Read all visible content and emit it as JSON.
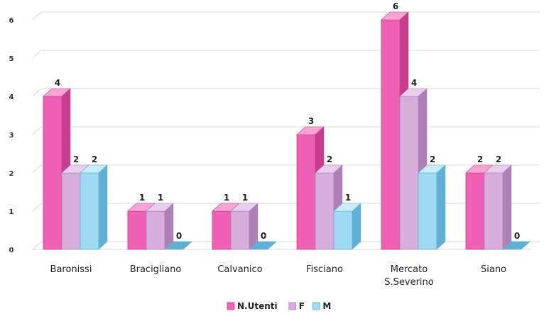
{
  "chart_data": {
    "type": "bar",
    "categories": [
      [
        "Baronissi"
      ],
      [
        "Bracigliano"
      ],
      [
        "Calvanico"
      ],
      [
        "Fisciano"
      ],
      [
        "Mercato",
        "S.Severino"
      ],
      [
        "Siano"
      ]
    ],
    "series": [
      {
        "name": "N.Utenti",
        "values": [
          4,
          1,
          1,
          3,
          6,
          2
        ],
        "color": "#ee60b4",
        "side": "#c83e8e",
        "top": "#f7a3d3"
      },
      {
        "name": "F",
        "values": [
          2,
          1,
          1,
          2,
          4,
          2
        ],
        "color": "#d6addb",
        "side": "#ad80b8",
        "top": "#e9cdec"
      },
      {
        "name": "M",
        "values": [
          2,
          0,
          0,
          1,
          2,
          0
        ],
        "color": "#9fdaf3",
        "side": "#5fb0d4",
        "top": "#c8ecfa"
      }
    ],
    "y_ticks": [
      0,
      1,
      2,
      3,
      4,
      5,
      6
    ],
    "ylim": [
      0,
      6
    ],
    "grid": true,
    "legend": "bottom-center",
    "title": "",
    "xlabel": "",
    "ylabel": ""
  }
}
